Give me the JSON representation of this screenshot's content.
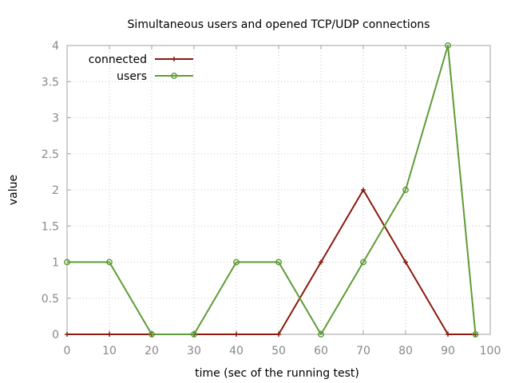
{
  "chart_data": {
    "type": "line",
    "title": "Simultaneous users and opened TCP/UDP connections",
    "xlabel": "time (sec of the running test)",
    "ylabel": "value",
    "xlim": [
      0,
      100
    ],
    "ylim": [
      0,
      4
    ],
    "xticks": [
      "0",
      "10",
      "20",
      "30",
      "40",
      "50",
      "60",
      "70",
      "80",
      "90",
      "100"
    ],
    "yticks": [
      "0",
      "0.5",
      "1",
      "1.5",
      "2",
      "2.5",
      "3",
      "3.5",
      "4"
    ],
    "grid": true,
    "legend_position": "top-left",
    "series": [
      {
        "name": "connected",
        "color": "#8b1a0e",
        "marker": "plus",
        "x": [
          0,
          10,
          20,
          30,
          40,
          50,
          60,
          70,
          80,
          90,
          96.5
        ],
        "y": [
          0,
          0,
          0,
          0,
          0,
          0,
          1,
          2,
          1,
          0,
          0
        ]
      },
      {
        "name": "users",
        "color": "#5e9c36",
        "marker": "circle",
        "x": [
          0,
          10,
          20,
          30,
          40,
          50,
          60,
          70,
          80,
          90,
          96.5
        ],
        "y": [
          1,
          1,
          0,
          0,
          1,
          1,
          0,
          1,
          2,
          4,
          0
        ]
      }
    ]
  }
}
